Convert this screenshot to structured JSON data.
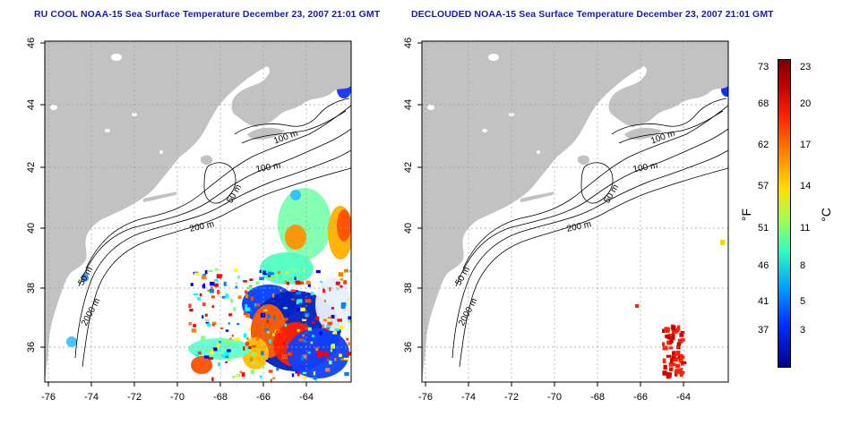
{
  "panels": [
    {
      "title": "RU COOL NOAA-15 Sea Surface Temperature December 23, 2007 21:01 GMT",
      "variant": "raw"
    },
    {
      "title": "DECLOUDED NOAA-15 Sea Surface Temperature December 23, 2007 21:01 GMT",
      "variant": "declouded"
    }
  ],
  "axes": {
    "x_ticks": [
      "-76",
      "-74",
      "-72",
      "-70",
      "-68",
      "-66",
      "-64"
    ],
    "y_ticks": [
      "36",
      "38",
      "40",
      "42",
      "44",
      "46"
    ]
  },
  "contours": {
    "m100_a": "100 m",
    "m100_b": "100 m",
    "m50_a": "50 m",
    "m200": "200 m",
    "m50_b": "50 m",
    "m2000": "2000 m"
  },
  "colorbar": {
    "f_ticks": [
      "73",
      "68",
      "62",
      "57",
      "51",
      "46",
      "41",
      "37"
    ],
    "c_ticks": [
      "23",
      "20",
      "17",
      "14",
      "11",
      "8",
      "5",
      "3"
    ],
    "f_unit": "°F",
    "c_unit": "°C"
  },
  "colors": {
    "land": "#c2c2c2",
    "title": "#1a1aa8",
    "grid": "#a0a0a0"
  }
}
